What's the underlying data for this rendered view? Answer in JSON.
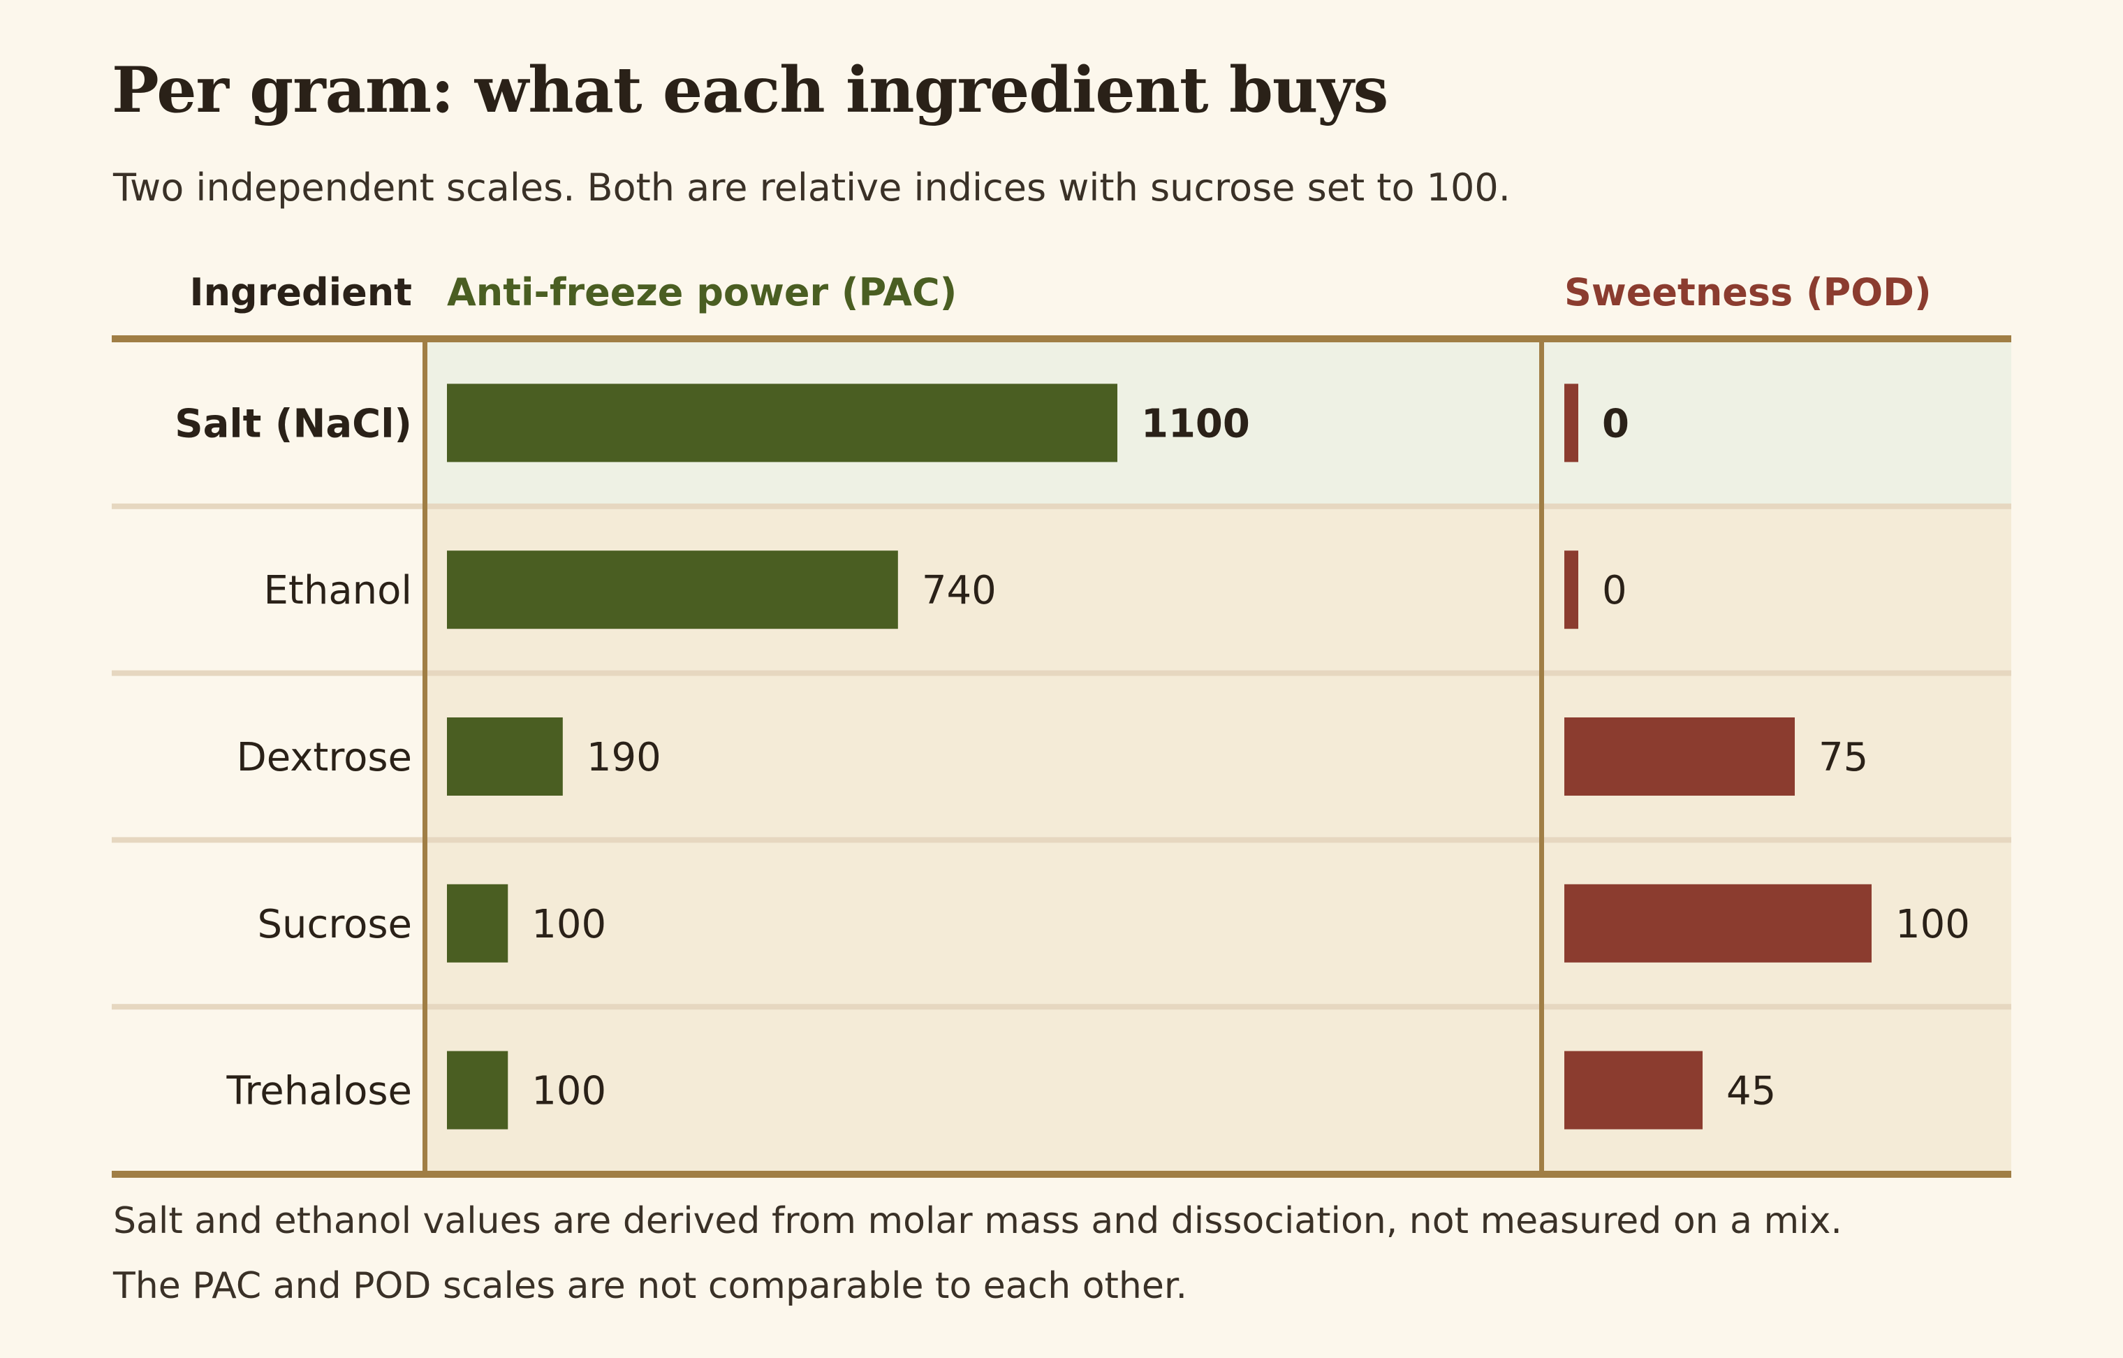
{
  "title": "Per gram: what each ingredient buys",
  "subtitle": "Two independent scales. Both are relative indices with sucrose set to 100.",
  "headers": {
    "ingredient": "Ingredient",
    "pac": "Anti-freeze power (PAC)",
    "pod": "Sweetness (POD)"
  },
  "footnotes": [
    "Salt and ethanol values are derived from molar mass and dissociation, not measured on a mix.",
    "The PAC and POD scales are not comparable to each other."
  ],
  "colors": {
    "pac": "#4a5e22",
    "pod": "#8b3c2f",
    "rule": "#a07e45",
    "row_bg": "#f4ebd7",
    "highlight_bg": "#eef1e4",
    "row_divider": "#e6d7c0",
    "text": "#2a2118"
  },
  "chart_data": {
    "type": "bar",
    "orientation": "horizontal",
    "categories": [
      "Salt (NaCl)",
      "Ethanol",
      "Dextrose",
      "Sucrose",
      "Trehalose"
    ],
    "highlighted_category": "Salt (NaCl)",
    "series": [
      {
        "name": "Anti-freeze power (PAC)",
        "values": [
          1100,
          740,
          190,
          100,
          100
        ]
      },
      {
        "name": "Sweetness (POD)",
        "values": [
          0,
          0,
          75,
          100,
          45
        ]
      }
    ],
    "value_labels": {
      "pac": [
        "1100",
        "740",
        "190",
        "100",
        "100"
      ],
      "pod": [
        "0",
        "0",
        "75",
        "100",
        "45"
      ]
    },
    "xlim_pac": [
      0,
      1200
    ],
    "xlim_pod": [
      0,
      120
    ],
    "grid": false
  }
}
